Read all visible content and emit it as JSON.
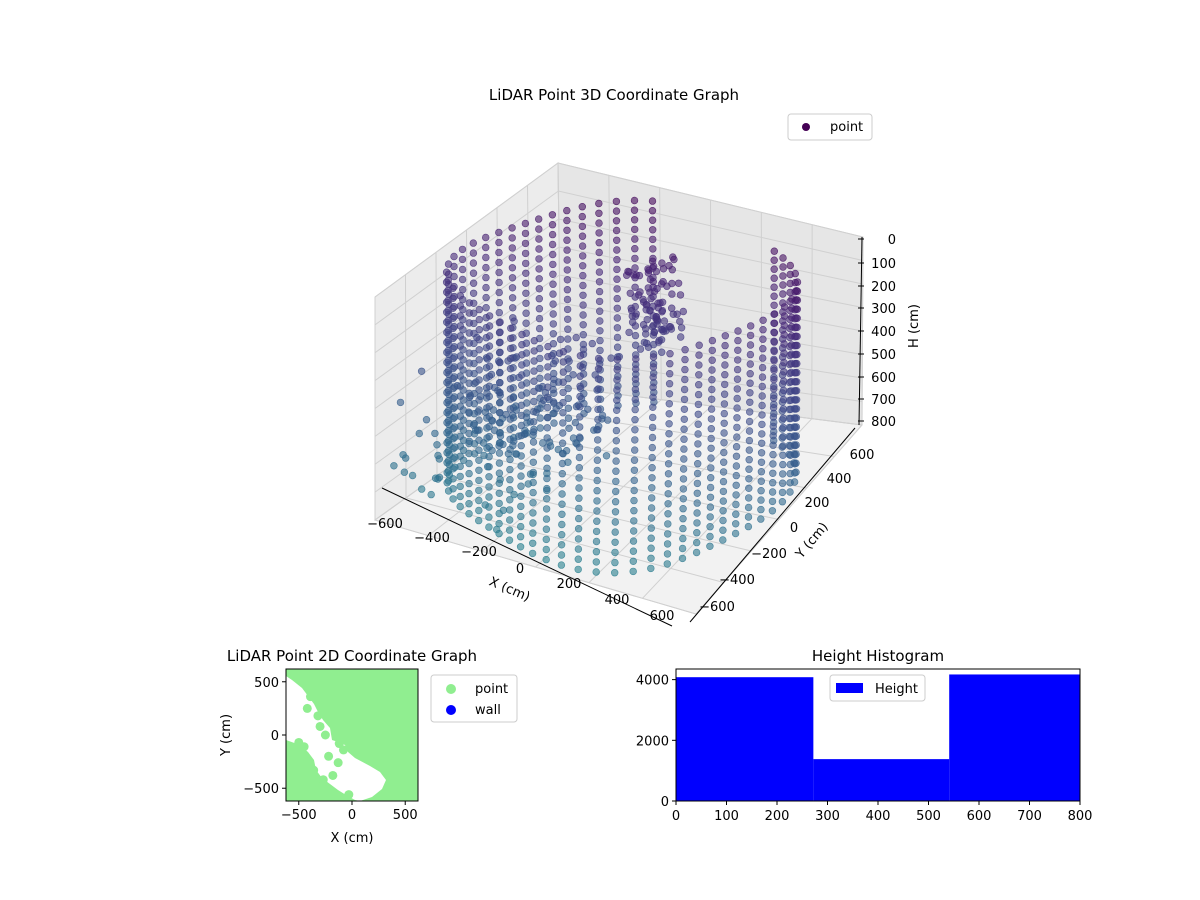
{
  "chart_data": [
    {
      "type": "scatter3d",
      "title": "LiDAR Point 3D Coordinate Graph",
      "xlabel": "X (cm)",
      "ylabel": "Y (cm)",
      "zlabel": "H (cm)",
      "xlim": [
        -600,
        600
      ],
      "ylim": [
        -600,
        600
      ],
      "zlim": [
        0,
        800
      ],
      "zinverted": true,
      "xticks": [
        "−600",
        "−400",
        "−200",
        "0",
        "200",
        "400",
        "600"
      ],
      "yticks": [
        "−600",
        "−400",
        "−200",
        "0",
        "200",
        "400",
        "600"
      ],
      "zticks": [
        "0",
        "100",
        "200",
        "300",
        "400",
        "500",
        "600",
        "700",
        "800"
      ],
      "legend": {
        "placement": "top-right",
        "entries": [
          {
            "label": "point",
            "color": "#440154"
          }
        ]
      },
      "colormap": "viridis",
      "grid": true,
      "series": [
        {
          "name": "point",
          "description_of_cloud": "cylindrical wall of points, radius approx 600 cm, heights 0-800 cm, open toward front-left",
          "wall_radius": 600,
          "wall_arc_deg": [
            110,
            410
          ],
          "h_range": [
            0,
            800
          ],
          "inner_block": {
            "x": [
              -150,
              0
            ],
            "y": [
              250,
              450
            ],
            "h": [
              150,
              450
            ]
          }
        }
      ]
    },
    {
      "type": "scatter",
      "title": "LiDAR Point 2D Coordinate Graph",
      "xlabel": "X (cm)",
      "ylabel": "Y (cm)",
      "xlim": [
        -620,
        620
      ],
      "ylim": [
        -620,
        620
      ],
      "xticks": [
        "−500",
        "0",
        "500"
      ],
      "yticks": [
        "−500",
        "0",
        "500"
      ],
      "legend": {
        "placement": "outside-right",
        "entries": [
          {
            "label": "point",
            "color": "#90ee90"
          },
          {
            "label": "wall",
            "color": "#0000ff"
          }
        ]
      },
      "series": [
        {
          "name": "point",
          "color": "#90ee90"
        },
        {
          "name": "wall",
          "color": "#0000ff",
          "points": []
        }
      ]
    },
    {
      "type": "bar",
      "title": "Height Histogram",
      "xlabel": "",
      "ylabel": "",
      "xlim": [
        0,
        800
      ],
      "ylim": [
        0,
        4350
      ],
      "xticks": [
        "0",
        "100",
        "200",
        "300",
        "400",
        "500",
        "600",
        "700",
        "800"
      ],
      "yticks": [
        "0",
        "2000",
        "4000"
      ],
      "legend": {
        "placement": "top-center",
        "entries": [
          {
            "label": "Height",
            "color": "#0000ff"
          }
        ]
      },
      "series": [
        {
          "name": "Height",
          "color": "#0000ff",
          "bins": [
            {
              "x0": 0,
              "x1": 272,
              "count": 4080
            },
            {
              "x0": 272,
              "x1": 541,
              "count": 1380
            },
            {
              "x0": 541,
              "x1": 800,
              "count": 4170
            }
          ]
        }
      ]
    }
  ]
}
